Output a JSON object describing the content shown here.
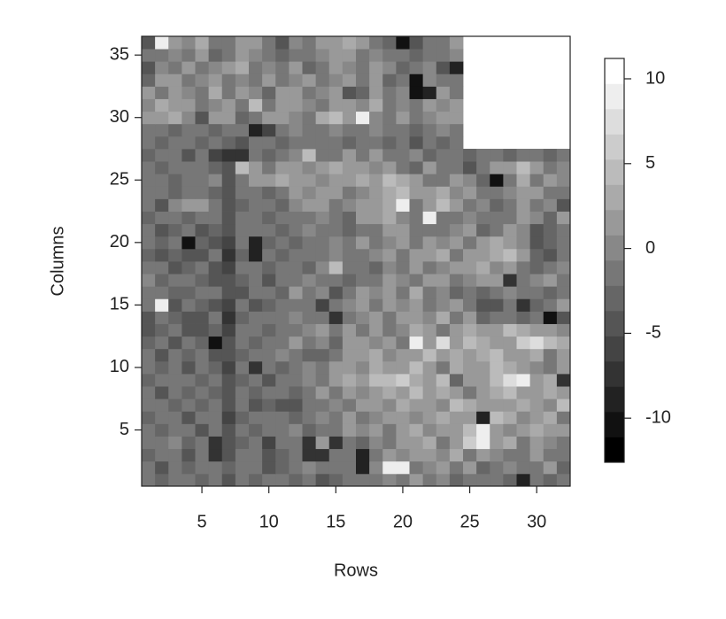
{
  "chart_data": {
    "type": "heatmap",
    "x_label": "Rows",
    "y_label": "Columns",
    "x": [
      1,
      2,
      3,
      4,
      5,
      6,
      7,
      8,
      9,
      10,
      11,
      12,
      13,
      14,
      15,
      16,
      17,
      18,
      19,
      20,
      21,
      22,
      23,
      24,
      25,
      26,
      27,
      28,
      29,
      30,
      31,
      32
    ],
    "y": [
      1,
      2,
      3,
      4,
      5,
      6,
      7,
      8,
      9,
      10,
      11,
      12,
      13,
      14,
      15,
      16,
      17,
      18,
      19,
      20,
      21,
      22,
      23,
      24,
      25,
      26,
      27,
      28,
      29,
      30,
      31,
      32,
      33,
      34,
      35,
      36
    ],
    "xlim": [
      0.5,
      32.5
    ],
    "ylim": [
      0.5,
      36.5
    ],
    "xticks": [
      5,
      10,
      15,
      20,
      25,
      30
    ],
    "yticks": [
      5,
      10,
      15,
      20,
      25,
      30,
      35
    ],
    "zlim": [
      -12.6,
      11.2
    ],
    "levels": 16,
    "colorbar_ticks": [
      -10,
      -5,
      0,
      5,
      10
    ],
    "z": [
      [
        -2,
        -3,
        -1,
        -2,
        -3,
        -1,
        -4,
        -2,
        -3,
        -2,
        -1,
        -3,
        -2,
        -4,
        -3,
        -2,
        -1,
        -2,
        0,
        -1,
        1,
        -2,
        0,
        -3,
        -1,
        -2,
        -1,
        -3,
        -9,
        -1,
        -3,
        -2
      ],
      [
        -1,
        -4,
        -2,
        -3,
        -1,
        -2,
        -3,
        -1,
        -2,
        -4,
        -3,
        -2,
        0,
        -1,
        -2,
        -1,
        -9,
        0,
        9,
        9,
        -1,
        0,
        1,
        -1,
        2,
        -3,
        -1,
        0,
        -2,
        -1,
        1,
        -3
      ],
      [
        -3,
        -2,
        -1,
        -4,
        -2,
        -7,
        -4,
        -2,
        -1,
        -5,
        -3,
        -1,
        -8,
        -8,
        -1,
        -2,
        -9,
        -1,
        1,
        0,
        2,
        1,
        0,
        3,
        -1,
        2,
        0,
        -1,
        -2,
        1,
        -1,
        -2
      ],
      [
        -1,
        -2,
        0,
        -3,
        -1,
        -7,
        -5,
        -3,
        -2,
        -6,
        -1,
        -2,
        -7,
        2,
        -8,
        -1,
        -3,
        0,
        -1,
        2,
        1,
        3,
        -1,
        2,
        6,
        9,
        2,
        3,
        -2,
        1,
        0,
        -1
      ],
      [
        -2,
        -3,
        -1,
        -2,
        -4,
        -1,
        -5,
        -2,
        -3,
        -1,
        -2,
        0,
        -3,
        -1,
        -2,
        1,
        0,
        2,
        -1,
        1,
        3,
        0,
        2,
        1,
        5,
        9,
        1,
        0,
        2,
        3,
        1,
        2
      ],
      [
        -3,
        -1,
        -2,
        -4,
        -1,
        -2,
        -6,
        -3,
        -2,
        -1,
        -2,
        -3,
        -1,
        0,
        -2,
        1,
        -1,
        0,
        2,
        1,
        0,
        2,
        3,
        1,
        2,
        -9,
        4,
        3,
        0,
        2,
        3,
        -1
      ],
      [
        -1,
        -2,
        -3,
        -2,
        -3,
        -1,
        -5,
        -2,
        -4,
        -3,
        -5,
        -4,
        -2,
        -1,
        0,
        -1,
        2,
        1,
        0,
        3,
        1,
        2,
        0,
        4,
        3,
        2,
        1,
        2,
        3,
        1,
        0,
        4
      ],
      [
        -2,
        -4,
        -1,
        -3,
        -2,
        -3,
        -4,
        -1,
        -3,
        -2,
        -1,
        -3,
        -2,
        1,
        -1,
        2,
        0,
        1,
        3,
        2,
        4,
        1,
        3,
        2,
        -2,
        1,
        3,
        4,
        1,
        2,
        3,
        2
      ],
      [
        -3,
        -1,
        -2,
        -2,
        -3,
        -2,
        -5,
        -3,
        -2,
        -4,
        -2,
        -1,
        0,
        -1,
        1,
        3,
        2,
        4,
        5,
        6,
        3,
        2,
        4,
        -3,
        1,
        2,
        5,
        8,
        9,
        2,
        3,
        -8
      ],
      [
        -1,
        -3,
        -2,
        -4,
        -1,
        -3,
        -6,
        -2,
        -7,
        -1,
        -3,
        -2,
        0,
        -1,
        2,
        1,
        0,
        3,
        2,
        1,
        4,
        2,
        -1,
        3,
        2,
        1,
        4,
        3,
        1,
        0,
        -1,
        2
      ],
      [
        -2,
        -5,
        -1,
        -3,
        -2,
        -4,
        -5,
        -3,
        -2,
        -1,
        0,
        -1,
        -3,
        -3,
        -1,
        2,
        1,
        3,
        0,
        2,
        1,
        4,
        2,
        3,
        1,
        3,
        4,
        1,
        2,
        3,
        -2,
        1
      ],
      [
        -3,
        -2,
        -4,
        -1,
        -3,
        -11,
        -4,
        -2,
        -3,
        -2,
        -1,
        1,
        -2,
        0,
        -3,
        1,
        2,
        0,
        1,
        -1,
        9,
        1,
        8,
        2,
        5,
        3,
        1,
        2,
        6,
        8,
        5,
        3
      ],
      [
        -4,
        -3,
        -2,
        -5,
        -4,
        -3,
        -6,
        -1,
        -2,
        -3,
        -1,
        -2,
        0,
        1,
        -1,
        2,
        -1,
        1,
        -2,
        0,
        3,
        1,
        -1,
        2,
        3,
        1,
        2,
        4,
        3,
        1,
        2,
        0
      ],
      [
        -5,
        -2,
        -3,
        -4,
        -5,
        -2,
        -7,
        -3,
        -2,
        -1,
        -2,
        0,
        -2,
        -1,
        -8,
        -1,
        0,
        2,
        -1,
        1,
        2,
        0,
        3,
        -2,
        1,
        -3,
        -2,
        -1,
        -3,
        -2,
        -11,
        -4
      ],
      [
        -2,
        9,
        -4,
        -1,
        -3,
        -5,
        -6,
        -2,
        -4,
        -3,
        -2,
        -1,
        -1,
        -6,
        -1,
        0,
        1,
        -1,
        2,
        0,
        1,
        -2,
        0,
        1,
        -1,
        -4,
        -4,
        -2,
        -7,
        -3,
        -2,
        1
      ],
      [
        -1,
        -2,
        -3,
        -3,
        -1,
        -2,
        -5,
        -4,
        -1,
        -2,
        -3,
        1,
        -2,
        0,
        -5,
        -1,
        2,
        0,
        1,
        -1,
        3,
        -1,
        0,
        -3,
        -2,
        -3,
        -1,
        0,
        -2,
        -1,
        -3,
        -1
      ],
      [
        0,
        -3,
        -2,
        -1,
        -3,
        -4,
        -5,
        -3,
        -2,
        -4,
        -1,
        -2,
        0,
        -1,
        -2,
        -3,
        -1,
        -2,
        1,
        0,
        -1,
        2,
        1,
        -1,
        0,
        2,
        1,
        -7,
        -2,
        0,
        1,
        -1
      ],
      [
        -2,
        -1,
        -4,
        -3,
        -2,
        -4,
        -6,
        -2,
        -1,
        -3,
        -2,
        -1,
        -3,
        0,
        4,
        -2,
        -1,
        -3,
        0,
        -2,
        1,
        -1,
        0,
        2,
        1,
        3,
        0,
        2,
        -1,
        -3,
        -2,
        0
      ],
      [
        -3,
        -4,
        -3,
        -5,
        -4,
        -2,
        -7,
        -3,
        -9,
        -2,
        -3,
        -1,
        -2,
        -1,
        0,
        -2,
        -1,
        0,
        1,
        -1,
        2,
        1,
        3,
        -1,
        2,
        1,
        3,
        5,
        2,
        -3,
        -4,
        -2
      ],
      [
        -2,
        -3,
        -2,
        -11,
        -3,
        -4,
        -6,
        -1,
        -9,
        -3,
        -2,
        -3,
        -1,
        -2,
        0,
        -1,
        1,
        -1,
        0,
        1,
        -1,
        2,
        0,
        1,
        -2,
        1,
        3,
        2,
        0,
        -5,
        -3,
        -1
      ],
      [
        -1,
        -5,
        -3,
        -2,
        -4,
        -3,
        -5,
        -2,
        -2,
        -1,
        -3,
        -2,
        0,
        -1,
        -2,
        -3,
        -2,
        -1,
        2,
        1,
        -1,
        -2,
        -1,
        0,
        1,
        -3,
        -2,
        1,
        0,
        -4,
        -3,
        -2
      ],
      [
        -3,
        -2,
        -1,
        -3,
        -2,
        -1,
        -4,
        -2,
        -1,
        -3,
        -2,
        -1,
        -2,
        0,
        -1,
        -3,
        2,
        1,
        3,
        0,
        -1,
        9,
        -2,
        -1,
        0,
        -2,
        -1,
        -2,
        1,
        0,
        -3,
        1
      ],
      [
        -2,
        -4,
        0,
        2,
        1,
        -2,
        -5,
        -3,
        -1,
        -2,
        -3,
        0,
        1,
        2,
        -1,
        0,
        1,
        2,
        3,
        9,
        -1,
        2,
        4,
        1,
        -1,
        0,
        -3,
        -2,
        1,
        -1,
        0,
        -4
      ],
      [
        -1,
        -2,
        -3,
        -1,
        -2,
        -3,
        -4,
        -1,
        -2,
        -3,
        -1,
        1,
        0,
        2,
        1,
        -1,
        0,
        2,
        3,
        4,
        2,
        1,
        3,
        0,
        1,
        -2,
        -1,
        0,
        1,
        2,
        -1,
        -2
      ],
      [
        -2,
        -1,
        -3,
        -2,
        -1,
        0,
        -5,
        -2,
        1,
        2,
        3,
        2,
        1,
        0,
        2,
        1,
        3,
        1,
        4,
        3,
        2,
        -1,
        -2,
        1,
        0,
        -3,
        -11,
        -2,
        3,
        -2,
        1,
        0
      ],
      [
        -1,
        -3,
        -2,
        -1,
        -2,
        -3,
        -4,
        4,
        2,
        -1,
        1,
        2,
        0,
        1,
        3,
        2,
        1,
        0,
        2,
        -1,
        -3,
        1,
        -2,
        -1,
        -5,
        -1,
        1,
        2,
        4,
        2,
        -2,
        0
      ],
      [
        -3,
        -2,
        -1,
        -4,
        -2,
        -6,
        -8,
        -8,
        -1,
        -3,
        -2,
        0,
        5,
        -1,
        -2,
        1,
        -2,
        1,
        -1,
        -2,
        0,
        -3,
        -1,
        -2,
        -3,
        -2,
        -1,
        -3,
        -2,
        -1,
        -3,
        -1
      ],
      [
        -2,
        -3,
        -2,
        -1,
        -3,
        -2,
        -3,
        -4,
        -2,
        -1,
        -3,
        -2,
        -1,
        -2,
        -1,
        -3,
        -2,
        -1,
        -3,
        -2,
        -4,
        -1,
        -3,
        -2,
        null,
        null,
        null,
        null,
        null,
        null,
        null,
        null
      ],
      [
        -1,
        -2,
        -3,
        -2,
        -1,
        -3,
        -2,
        -1,
        -9,
        -6,
        -1,
        0,
        -2,
        -1,
        0,
        -2,
        -1,
        0,
        -2,
        -1,
        -3,
        -1,
        0,
        -2,
        null,
        null,
        null,
        null,
        null,
        null,
        null,
        null
      ],
      [
        1,
        2,
        3,
        0,
        -5,
        2,
        1,
        -3,
        -1,
        2,
        1,
        0,
        -2,
        3,
        4,
        1,
        9,
        0,
        -1,
        1,
        -2,
        0,
        1,
        2,
        null,
        null,
        null,
        null,
        null,
        null,
        null,
        null
      ],
      [
        0,
        3,
        2,
        1,
        -2,
        0,
        1,
        -1,
        5,
        -2,
        1,
        2,
        0,
        -1,
        1,
        2,
        0,
        3,
        -2,
        0,
        -1,
        2,
        0,
        1,
        null,
        null,
        null,
        null,
        null,
        null,
        null,
        null
      ],
      [
        2,
        -1,
        1,
        0,
        -2,
        3,
        -1,
        2,
        0,
        -3,
        2,
        1,
        -1,
        0,
        2,
        -4,
        -3,
        1,
        -2,
        0,
        -11,
        -9,
        1,
        -1,
        null,
        null,
        null,
        null,
        null,
        null,
        null,
        null
      ],
      [
        -3,
        1,
        2,
        -1,
        0,
        1,
        -2,
        0,
        -1,
        2,
        -1,
        0,
        1,
        -2,
        0,
        1,
        -1,
        2,
        -3,
        -2,
        -11,
        0,
        -2,
        -1,
        null,
        null,
        null,
        null,
        null,
        null,
        null,
        null
      ],
      [
        -5,
        0,
        -1,
        2,
        -2,
        0,
        1,
        3,
        -1,
        0,
        -2,
        1,
        -3,
        -1,
        2,
        0,
        -2,
        1,
        0,
        -3,
        -1,
        0,
        -4,
        -9,
        null,
        null,
        null,
        null,
        null,
        null,
        null,
        null
      ],
      [
        -2,
        -1,
        0,
        -2,
        1,
        -3,
        -2,
        1,
        0,
        -1,
        -3,
        -2,
        -1,
        0,
        2,
        1,
        -1,
        0,
        -2,
        -1,
        -3,
        -2,
        -1,
        0,
        null,
        null,
        null,
        null,
        null,
        null,
        null,
        null
      ],
      [
        -4,
        9,
        1,
        0,
        3,
        -1,
        -2,
        2,
        1,
        -1,
        -5,
        0,
        -2,
        1,
        2,
        3,
        1,
        -1,
        -3,
        -11,
        -4,
        -1,
        -1,
        1,
        null,
        null,
        null,
        null,
        null,
        null,
        null,
        null
      ]
    ]
  }
}
